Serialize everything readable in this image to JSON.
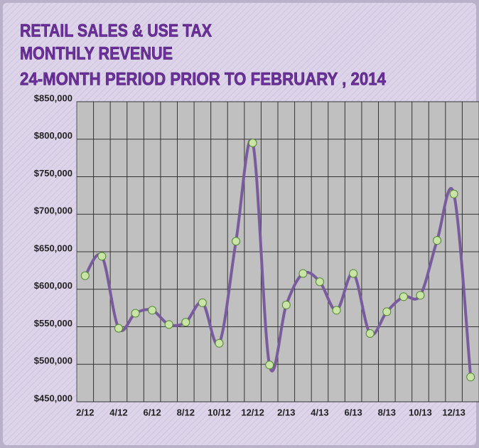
{
  "chart_data": {
    "type": "line",
    "title": [
      "RETAIL SALES & USE TAX",
      "MONTHLY REVENUE",
      "24-MONTH PERIOD PRIOR TO FEBRUARY , 2014"
    ],
    "categories": [
      "2/12",
      null,
      "4/12",
      null,
      "6/12",
      null,
      "8/12",
      null,
      "10/12",
      null,
      "12/12",
      null,
      "2/13",
      null,
      "4/13",
      null,
      "6/13",
      null,
      "8/13",
      null,
      "10/13",
      null,
      "12/13",
      null
    ],
    "series": [
      {
        "name": "Revenue",
        "color": "#7a5c9e",
        "marker_color": "#c9e4a6",
        "values": [
          618000,
          644000,
          548000,
          568000,
          572000,
          553000,
          556000,
          582000,
          528000,
          664000,
          795000,
          499000,
          579000,
          621000,
          610000,
          572000,
          621000,
          541000,
          570000,
          590000,
          592000,
          665000,
          727000,
          483000
        ]
      }
    ],
    "ylim": [
      450000,
      850000
    ],
    "yticks": [
      {
        "value": 450000,
        "label": "$450,000"
      },
      {
        "value": 500000,
        "label": "$500,000"
      },
      {
        "value": 550000,
        "label": "$550,000"
      },
      {
        "value": 600000,
        "label": "$600,000"
      },
      {
        "value": 650000,
        "label": "$650,000"
      },
      {
        "value": 700000,
        "label": "$700,000"
      },
      {
        "value": 750000,
        "label": "$750,000"
      },
      {
        "value": 800000,
        "label": "$800,000"
      },
      {
        "value": 850000,
        "label": "$850,000"
      }
    ],
    "grid": true
  }
}
